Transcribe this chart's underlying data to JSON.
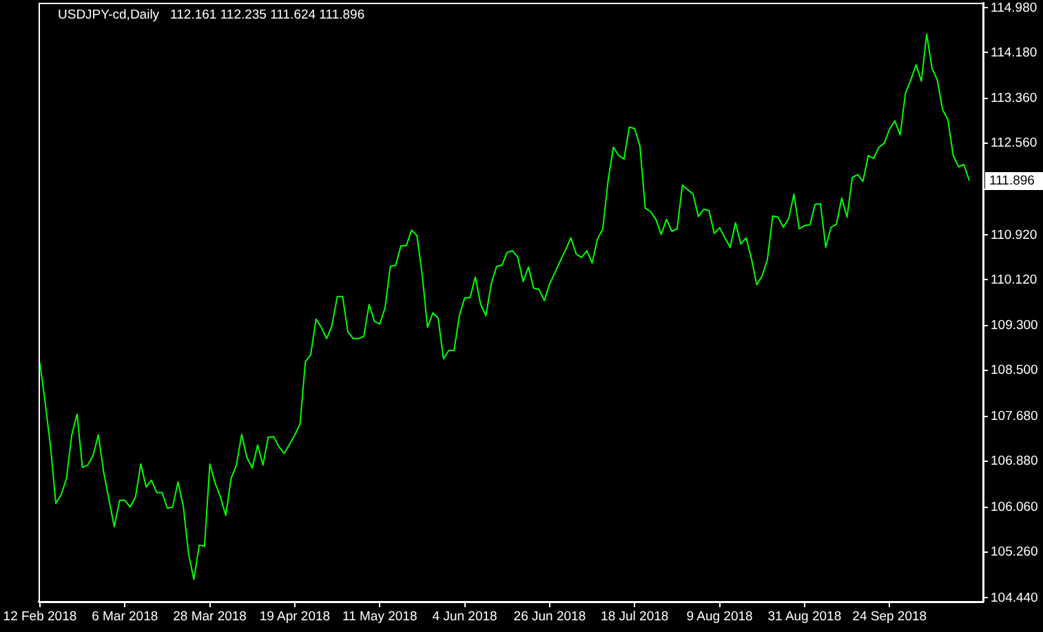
{
  "chart_data": {
    "type": "line",
    "title": "USDJPY-cd,Daily",
    "subtitle": "112.161 112.235 111.624 111.896",
    "categories": [
      "12 Feb 2018",
      null,
      null,
      null,
      null,
      null,
      null,
      null,
      null,
      null,
      null,
      null,
      null,
      null,
      null,
      null,
      "6 Mar 2018",
      null,
      null,
      null,
      null,
      null,
      null,
      null,
      null,
      null,
      null,
      null,
      null,
      null,
      null,
      null,
      "28 Mar 2018",
      null,
      null,
      null,
      null,
      null,
      null,
      null,
      null,
      null,
      null,
      null,
      null,
      null,
      null,
      null,
      "19 Apr 2018",
      null,
      null,
      null,
      null,
      null,
      null,
      null,
      null,
      null,
      null,
      null,
      null,
      null,
      null,
      null,
      "11 May 2018",
      null,
      null,
      null,
      null,
      null,
      null,
      null,
      null,
      null,
      null,
      null,
      null,
      null,
      null,
      null,
      "4 Jun 2018",
      null,
      null,
      null,
      null,
      null,
      null,
      null,
      null,
      null,
      null,
      null,
      null,
      null,
      null,
      null,
      "26 Jun 2018",
      null,
      null,
      null,
      null,
      null,
      null,
      null,
      null,
      null,
      null,
      null,
      null,
      null,
      null,
      null,
      "18 Jul 2018",
      null,
      null,
      null,
      null,
      null,
      null,
      null,
      null,
      null,
      null,
      null,
      null,
      null,
      null,
      null,
      "9 Aug 2018",
      null,
      null,
      null,
      null,
      null,
      null,
      null,
      null,
      null,
      null,
      null,
      null,
      null,
      null,
      null,
      "31 Aug 2018",
      null,
      null,
      null,
      null,
      null,
      null,
      null,
      null,
      null,
      null,
      null,
      null,
      null,
      null,
      null,
      "24 Sep 2018",
      null,
      null,
      null,
      null,
      null,
      null,
      null,
      null,
      null,
      null,
      null,
      null,
      null,
      null,
      null
    ],
    "values": [
      108.63,
      107.92,
      107.14,
      106.13,
      106.28,
      106.57,
      107.35,
      107.72,
      106.77,
      106.81,
      106.98,
      107.35,
      106.69,
      106.2,
      105.71,
      106.18,
      106.18,
      106.06,
      106.24,
      106.83,
      106.42,
      106.54,
      106.32,
      106.32,
      106.04,
      106.06,
      106.51,
      106.08,
      105.22,
      104.77,
      105.38,
      105.36,
      106.83,
      106.49,
      106.24,
      105.91,
      106.57,
      106.81,
      107.36,
      106.94,
      106.76,
      107.17,
      106.81,
      107.31,
      107.32,
      107.14,
      107.02,
      107.18,
      107.35,
      107.55,
      108.66,
      108.78,
      109.42,
      109.27,
      109.07,
      109.3,
      109.82,
      109.82,
      109.19,
      109.07,
      109.07,
      109.11,
      109.68,
      109.38,
      109.33,
      109.62,
      110.36,
      110.38,
      110.73,
      110.73,
      111.01,
      110.91,
      110.21,
      109.27,
      109.53,
      109.44,
      108.71,
      108.86,
      108.86,
      109.48,
      109.8,
      109.8,
      110.17,
      109.68,
      109.48,
      110.05,
      110.36,
      110.38,
      110.61,
      110.64,
      110.52,
      110.09,
      110.35,
      109.97,
      109.95,
      109.75,
      110.05,
      110.25,
      110.46,
      110.66,
      110.87,
      110.58,
      110.52,
      110.64,
      110.42,
      110.85,
      111.03,
      111.89,
      112.49,
      112.34,
      112.28,
      112.85,
      112.82,
      112.51,
      111.4,
      111.34,
      111.2,
      110.93,
      111.2,
      110.99,
      111.03,
      111.81,
      111.73,
      111.65,
      111.25,
      111.38,
      111.36,
      110.95,
      111.05,
      110.87,
      110.7,
      111.14,
      110.76,
      110.87,
      110.5,
      110.03,
      110.19,
      110.48,
      111.26,
      111.24,
      111.06,
      111.21,
      111.65,
      111.03,
      111.09,
      111.1,
      111.47,
      111.48,
      110.7,
      111.06,
      111.11,
      111.58,
      111.24,
      111.95,
      112.0,
      111.88,
      112.34,
      112.29,
      112.49,
      112.56,
      112.81,
      112.96,
      112.71,
      113.45,
      113.69,
      113.96,
      113.67,
      114.51,
      113.9,
      113.69,
      113.16,
      112.98,
      112.34,
      112.14,
      112.18,
      111.9
    ],
    "color": "#00ff00",
    "ylim": [
      104.37,
      115.07
    ],
    "yticks": [
      {
        "value": 114.98,
        "label": "114.980"
      },
      {
        "value": 114.18,
        "label": "114.180"
      },
      {
        "value": 113.36,
        "label": "113.360"
      },
      {
        "value": 112.56,
        "label": "112.560"
      },
      {
        "value": 111.74,
        "label": null
      },
      {
        "value": 110.92,
        "label": "110.920"
      },
      {
        "value": 110.12,
        "label": "110.120"
      },
      {
        "value": 109.3,
        "label": "109.300"
      },
      {
        "value": 108.5,
        "label": "108.500"
      },
      {
        "value": 107.68,
        "label": "107.680"
      },
      {
        "value": 106.88,
        "label": "106.880"
      },
      {
        "value": 106.06,
        "label": "106.060"
      },
      {
        "value": 105.26,
        "label": "105.260"
      },
      {
        "value": 104.44,
        "label": "104.440"
      }
    ],
    "annotations": [
      {
        "text": "111.896",
        "y": 111.896
      }
    ],
    "grid": false,
    "marker": "none",
    "line_style": "solid"
  }
}
